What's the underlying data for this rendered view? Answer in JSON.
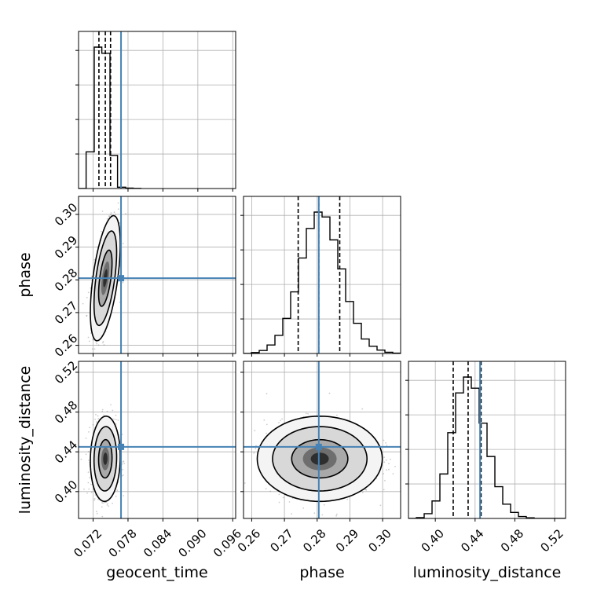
{
  "chart_data": {
    "type": "corner",
    "parameters": [
      "geocent_time",
      "phase",
      "luminosity_distance"
    ],
    "colors": {
      "truth": "#4682b4",
      "hist": "#000000",
      "grid": "#b0b0b0",
      "contour_fills": [
        "#d8d8d8",
        "#a9a9a9",
        "#6e6e6e",
        "#2e2e2e"
      ]
    },
    "truths": {
      "geocent_time": 0.0768,
      "phase": 0.2805,
      "luminosity_distance": 0.445
    },
    "ranges": {
      "geocent_time": [
        0.0695,
        0.0965
      ],
      "phase": [
        0.2575,
        0.3055
      ],
      "luminosity_distance": [
        0.373,
        0.531
      ]
    },
    "ticks": {
      "geocent_time": [
        0.072,
        0.078,
        0.084,
        0.09,
        0.096
      ],
      "phase": [
        0.26,
        0.27,
        0.28,
        0.29,
        0.3
      ],
      "luminosity_distance": [
        0.4,
        0.44,
        0.48,
        0.52
      ]
    },
    "tick_labels": {
      "geocent_time": [
        "0.072",
        "0.078",
        "0.084",
        "0.090",
        "0.096"
      ],
      "phase": [
        "0.26",
        "0.27",
        "0.28",
        "0.29",
        "0.30"
      ],
      "luminosity_distance": [
        "0.40",
        "0.44",
        "0.48",
        "0.52"
      ]
    },
    "quantiles": {
      "geocent_time": [
        0.073,
        0.0741,
        0.075
      ],
      "phase": [
        0.2742,
        0.2805,
        0.2869
      ],
      "luminosity_distance": [
        0.418,
        0.433,
        0.446
      ]
    },
    "histograms": {
      "geocent_time": {
        "edges": [
          0.0695,
          0.0708,
          0.0722,
          0.0735,
          0.0749,
          0.0762,
          0.0776,
          0.0789,
          0.0803
        ],
        "counts": [
          0,
          420,
          1620,
          1550,
          380,
          15,
          5,
          2
        ]
      },
      "phase": {
        "edges": [
          0.2575,
          0.2599,
          0.2623,
          0.2647,
          0.2671,
          0.2695,
          0.2719,
          0.2743,
          0.2767,
          0.2791,
          0.2815,
          0.2839,
          0.2863,
          0.2887,
          0.2911,
          0.2935,
          0.2959,
          0.2983,
          0.3007,
          0.3031,
          0.3055
        ],
        "counts": [
          0,
          8,
          25,
          70,
          150,
          290,
          510,
          790,
          1035,
          1170,
          1130,
          940,
          700,
          430,
          250,
          120,
          60,
          28,
          10,
          3
        ]
      },
      "luminosity_distance": {
        "edges": [
          0.373,
          0.3809,
          0.3888,
          0.3967,
          0.4046,
          0.4125,
          0.4204,
          0.4283,
          0.4362,
          0.4441,
          0.452,
          0.4599,
          0.4678,
          0.4757,
          0.4836,
          0.4915,
          0.4994,
          0.5073,
          0.5152,
          0.5231,
          0.531
        ],
        "counts": [
          0,
          5,
          30,
          110,
          280,
          540,
          790,
          890,
          820,
          600,
          390,
          200,
          90,
          38,
          12,
          4,
          0,
          0,
          0,
          0
        ]
      }
    },
    "contours_2d": {
      "phase|geocent_time": {
        "center": [
          0.0741,
          0.2805
        ],
        "sigmas": [
          0.00105,
          0.0078
        ],
        "rho": 0.55,
        "levels": [
          1.1,
          1.85,
          2.45
        ]
      },
      "luminosity_distance|geocent_time": {
        "center": [
          0.0741,
          0.433
        ],
        "sigmas": [
          0.00105,
          0.0175
        ],
        "rho": 0.05,
        "levels": [
          1.1,
          1.85,
          2.45
        ]
      },
      "luminosity_distance|phase": {
        "center": [
          0.2808,
          0.433
        ],
        "sigmas": [
          0.0078,
          0.0175
        ],
        "rho": 0.0,
        "levels": [
          1.1,
          1.85,
          2.45
        ]
      }
    },
    "grid": true
  }
}
